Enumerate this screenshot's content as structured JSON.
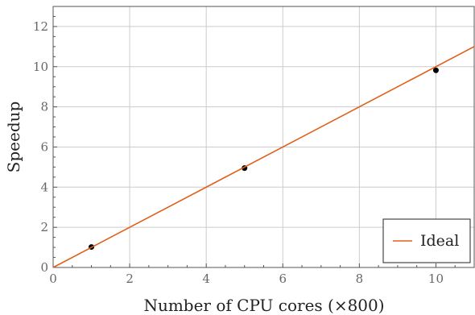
{
  "chart_data": {
    "type": "scatter",
    "xlabel": "Number of CPU cores (×800)",
    "ylabel": "Speedup",
    "xlim": [
      0,
      11
    ],
    "ylim": [
      0,
      13
    ],
    "x_ticks": [
      0,
      2,
      4,
      6,
      8,
      10
    ],
    "y_ticks": [
      0,
      2,
      4,
      6,
      8,
      10,
      12
    ],
    "grid": true,
    "legend_position": "bottom-right",
    "series": [
      {
        "type": "scatter",
        "color": "#000000",
        "x": [
          1,
          5,
          10
        ],
        "y": [
          1.02,
          4.95,
          9.82
        ]
      },
      {
        "type": "line",
        "name": "Ideal",
        "color": "#e0601a",
        "x": [
          0,
          11
        ],
        "y": [
          0,
          11
        ]
      }
    ]
  }
}
